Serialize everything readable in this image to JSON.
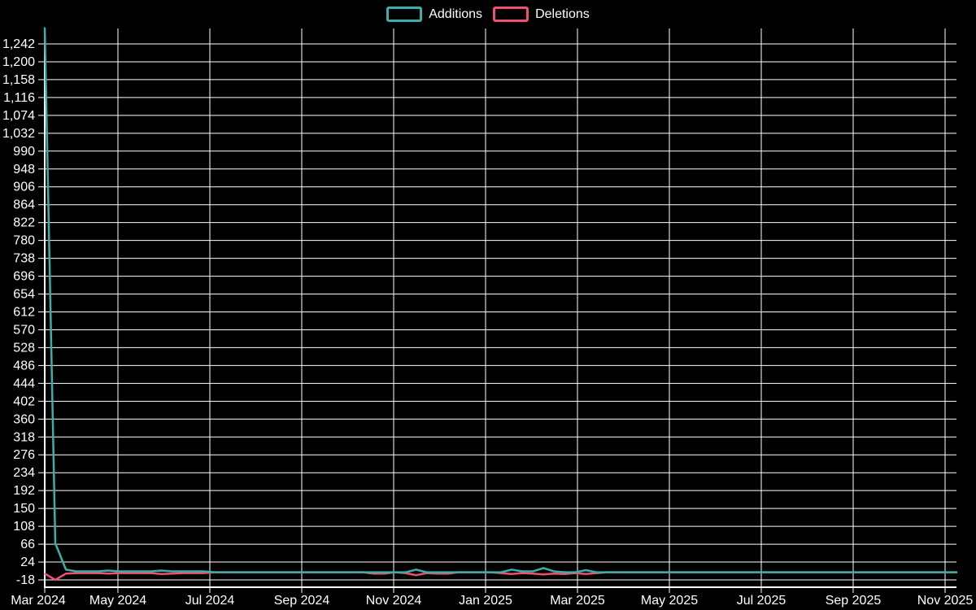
{
  "page": {
    "background": "#000000",
    "text_color": "#ffffff",
    "grid_color": "#ffffff"
  },
  "chart_data": {
    "type": "line",
    "title": "",
    "legend": {
      "position": "top-center",
      "items": [
        {
          "label": "Additions",
          "color": "#3AAFA9"
        },
        {
          "label": "Deletions",
          "color": "#EE506E"
        }
      ]
    },
    "x_axis": {
      "type": "time",
      "start_date": "2024-03-17",
      "interval_days": 7,
      "n_points": 87,
      "tick_labels": [
        "Mar 2024",
        "May 2024",
        "Jul 2024",
        "Sep 2024",
        "Nov 2024",
        "Jan 2025",
        "Mar 2025",
        "May 2025",
        "Jul 2025",
        "Sep 2025",
        "Nov 2025"
      ]
    },
    "y_axis": {
      "min": -18,
      "max": 1242,
      "tick_step": 42,
      "ticks": [
        -18,
        24,
        66,
        108,
        150,
        192,
        234,
        276,
        318,
        360,
        402,
        444,
        486,
        528,
        570,
        612,
        654,
        696,
        738,
        780,
        822,
        864,
        906,
        948,
        990,
        1032,
        1074,
        1116,
        1158,
        1200,
        1242
      ]
    },
    "grid": true,
    "series": [
      {
        "name": "Additions",
        "color": "#3AAFA9",
        "values": [
          1281,
          68,
          6,
          2,
          2,
          2,
          4,
          2,
          2,
          2,
          2,
          4,
          2,
          2,
          2,
          2,
          0,
          0,
          0,
          0,
          0,
          0,
          0,
          0,
          0,
          0,
          0,
          0,
          0,
          0,
          0,
          0,
          0,
          0,
          0,
          6,
          0,
          0,
          0,
          0,
          0,
          0,
          0,
          0,
          6,
          2,
          2,
          10,
          2,
          0,
          0,
          5,
          0,
          0,
          0,
          0,
          0,
          0,
          0,
          0,
          0,
          0,
          0,
          0,
          0,
          0,
          0,
          0,
          0,
          0,
          0,
          0,
          0,
          0,
          0,
          0,
          0,
          0,
          0,
          0,
          0,
          0,
          0,
          0,
          0,
          0,
          0
        ]
      },
      {
        "name": "Deletions",
        "color": "#EE506E",
        "values": [
          -3,
          -18,
          -3,
          -2,
          -2,
          -2,
          -3,
          -2,
          -2,
          -2,
          -2,
          -4,
          -3,
          -2,
          -2,
          -2,
          0,
          0,
          0,
          0,
          0,
          0,
          0,
          0,
          0,
          0,
          0,
          0,
          0,
          0,
          0,
          -3,
          -3,
          0,
          -2,
          -7,
          -2,
          -3,
          -3,
          0,
          0,
          0,
          0,
          -2,
          -4,
          -2,
          -3,
          -5,
          -3,
          -4,
          -2,
          -4,
          -2,
          0,
          0,
          0,
          0,
          0,
          0,
          0,
          0,
          0,
          0,
          0,
          0,
          0,
          0,
          0,
          0,
          0,
          0,
          0,
          0,
          0,
          0,
          0,
          0,
          0,
          0,
          0,
          0,
          0,
          0,
          0,
          0,
          0,
          0
        ]
      }
    ]
  }
}
